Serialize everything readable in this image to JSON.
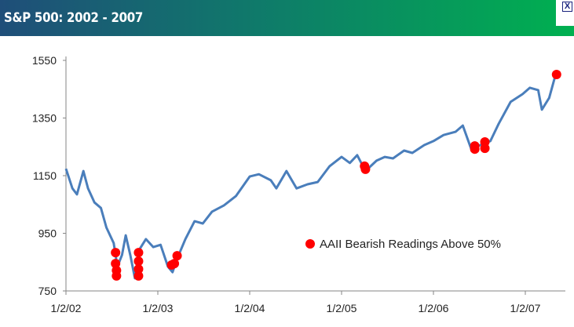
{
  "header": {
    "title": "S&P 500: 2002 - 2007",
    "close_label": "X"
  },
  "colors": {
    "line": "#4a7ebb",
    "dot": "#ff0000",
    "axis": "#868686"
  },
  "chart_data": {
    "type": "line",
    "title": "S&P 500: 2002 - 2007",
    "xlabel": "",
    "ylabel": "",
    "ylim": [
      750,
      1550
    ],
    "yticks": [
      750,
      950,
      1150,
      1350,
      1550
    ],
    "xlim": [
      2002.0,
      2007.45
    ],
    "xticks": [
      {
        "value": 2002.0,
        "label": "1/2/02"
      },
      {
        "value": 2003.0,
        "label": "1/2/03"
      },
      {
        "value": 2004.0,
        "label": "1/2/04"
      },
      {
        "value": 2005.0,
        "label": "1/2/05"
      },
      {
        "value": 2006.0,
        "label": "1/2/06"
      },
      {
        "value": 2007.0,
        "label": "1/2/07"
      }
    ],
    "grid": false,
    "series": [
      {
        "name": "S&P 500",
        "values": [
          [
            2002.0,
            1174
          ],
          [
            2002.07,
            1106
          ],
          [
            2002.12,
            1085
          ],
          [
            2002.19,
            1166
          ],
          [
            2002.24,
            1106
          ],
          [
            2002.31,
            1057
          ],
          [
            2002.38,
            1038
          ],
          [
            2002.44,
            970
          ],
          [
            2002.52,
            916
          ],
          [
            2002.56,
            834
          ],
          [
            2002.61,
            875
          ],
          [
            2002.65,
            943
          ],
          [
            2002.7,
            875
          ],
          [
            2002.75,
            794
          ],
          [
            2002.8,
            894
          ],
          [
            2002.87,
            930
          ],
          [
            2002.95,
            902
          ],
          [
            2003.03,
            910
          ],
          [
            2003.11,
            834
          ],
          [
            2003.16,
            815
          ],
          [
            2003.21,
            862
          ],
          [
            2003.3,
            930
          ],
          [
            2003.4,
            992
          ],
          [
            2003.49,
            984
          ],
          [
            2003.59,
            1025
          ],
          [
            2003.72,
            1047
          ],
          [
            2003.85,
            1079
          ],
          [
            2004.0,
            1147
          ],
          [
            2004.1,
            1155
          ],
          [
            2004.23,
            1134
          ],
          [
            2004.29,
            1106
          ],
          [
            2004.4,
            1166
          ],
          [
            2004.51,
            1106
          ],
          [
            2004.63,
            1120
          ],
          [
            2004.74,
            1128
          ],
          [
            2004.87,
            1183
          ],
          [
            2005.0,
            1215
          ],
          [
            2005.09,
            1194
          ],
          [
            2005.17,
            1221
          ],
          [
            2005.26,
            1166
          ],
          [
            2005.38,
            1202
          ],
          [
            2005.47,
            1215
          ],
          [
            2005.56,
            1210
          ],
          [
            2005.68,
            1237
          ],
          [
            2005.77,
            1229
          ],
          [
            2005.9,
            1256
          ],
          [
            2006.0,
            1270
          ],
          [
            2006.11,
            1291
          ],
          [
            2006.24,
            1302
          ],
          [
            2006.32,
            1324
          ],
          [
            2006.41,
            1243
          ],
          [
            2006.51,
            1256
          ],
          [
            2006.62,
            1270
          ],
          [
            2006.71,
            1330
          ],
          [
            2006.84,
            1406
          ],
          [
            2006.97,
            1433
          ],
          [
            2007.05,
            1455
          ],
          [
            2007.14,
            1447
          ],
          [
            2007.18,
            1379
          ],
          [
            2007.26,
            1420
          ],
          [
            2007.33,
            1501
          ]
        ]
      }
    ],
    "highlight": {
      "name": "AAII Bearish Readings Above 50%",
      "points": [
        [
          2002.54,
          883
        ],
        [
          2002.54,
          845
        ],
        [
          2002.55,
          821
        ],
        [
          2002.55,
          802
        ],
        [
          2002.79,
          883
        ],
        [
          2002.79,
          853
        ],
        [
          2002.79,
          826
        ],
        [
          2002.79,
          802
        ],
        [
          2003.15,
          840
        ],
        [
          2003.18,
          845
        ],
        [
          2003.21,
          872
        ],
        [
          2005.25,
          1183
        ],
        [
          2005.26,
          1172
        ],
        [
          2006.45,
          1253
        ],
        [
          2006.45,
          1242
        ],
        [
          2006.56,
          1267
        ],
        [
          2006.56,
          1245
        ],
        [
          2007.34,
          1501
        ]
      ]
    },
    "legend": {
      "label": "AAII Bearish Readings Above 50%",
      "placement": "center-right"
    }
  }
}
